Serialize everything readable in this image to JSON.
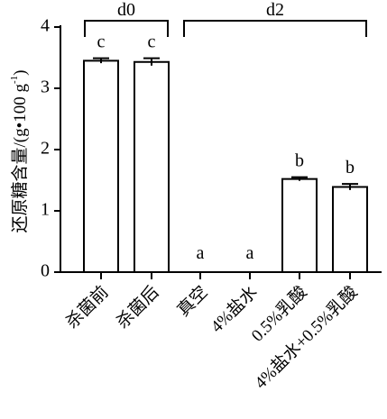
{
  "chart_data": {
    "type": "bar",
    "categories": [
      "杀菌前",
      "杀菌后",
      "真空",
      "4%盐水",
      "0.5%乳酸",
      "4%盐水+0.5%乳酸"
    ],
    "values": [
      3.45,
      3.43,
      0,
      0,
      1.52,
      1.39
    ],
    "errors": [
      0.04,
      0.06,
      0,
      0,
      0.03,
      0.05
    ],
    "significance": [
      "c",
      "c",
      "a",
      "a",
      "b",
      "b"
    ],
    "groups": [
      {
        "label": "d0",
        "from": 0,
        "to": 1
      },
      {
        "label": "d2",
        "from": 2,
        "to": 5
      }
    ],
    "ylabel_main": "还原糖含量/",
    "ylabel_unit_open": "(g",
    "ylabel_unit_dot": "•",
    "ylabel_unit_100": "100 g",
    "ylabel_unit_exp": "-1",
    "ylabel_unit_close": ")",
    "yticks": [
      "0",
      "1",
      "2",
      "3",
      "4"
    ],
    "ylim": [
      0,
      4
    ],
    "grid": false,
    "legend": "none",
    "bar_fill": "#ffffff",
    "stroke_color": "#000000"
  }
}
